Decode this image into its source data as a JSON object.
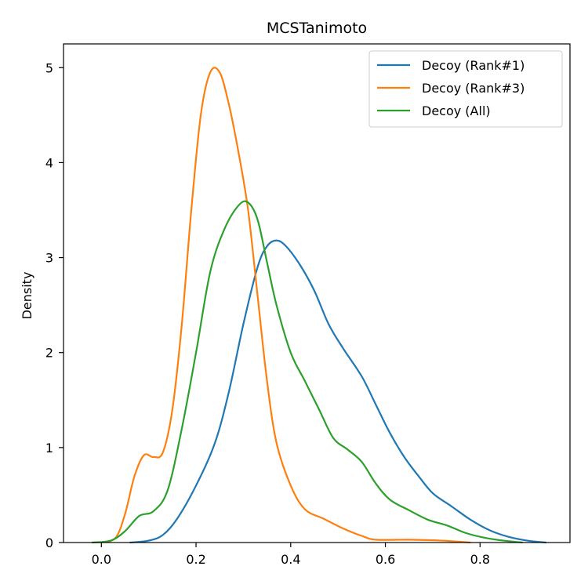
{
  "chart_data": {
    "type": "line",
    "title": "MCSTanimoto",
    "xlabel": "",
    "ylabel": "Density",
    "xlim": [
      -0.08,
      0.99
    ],
    "ylim": [
      0,
      5.25
    ],
    "xticks": [
      0.0,
      0.2,
      0.4,
      0.6,
      0.8
    ],
    "xtick_labels": [
      "0.0",
      "0.2",
      "0.4",
      "0.6",
      "0.8"
    ],
    "yticks": [
      0,
      1,
      2,
      3,
      4,
      5
    ],
    "ytick_labels": [
      "0",
      "1",
      "2",
      "3",
      "4",
      "5"
    ],
    "grid": false,
    "legend_position": "top-right",
    "series": [
      {
        "name": "Decoy (Rank#1)",
        "color": "#1f77b4",
        "points": [
          [
            0.06,
            0.0
          ],
          [
            0.1,
            0.02
          ],
          [
            0.13,
            0.08
          ],
          [
            0.16,
            0.25
          ],
          [
            0.2,
            0.6
          ],
          [
            0.24,
            1.05
          ],
          [
            0.27,
            1.6
          ],
          [
            0.3,
            2.3
          ],
          [
            0.33,
            2.9
          ],
          [
            0.35,
            3.12
          ],
          [
            0.37,
            3.18
          ],
          [
            0.39,
            3.12
          ],
          [
            0.42,
            2.92
          ],
          [
            0.45,
            2.65
          ],
          [
            0.48,
            2.3
          ],
          [
            0.51,
            2.05
          ],
          [
            0.55,
            1.75
          ],
          [
            0.58,
            1.45
          ],
          [
            0.61,
            1.15
          ],
          [
            0.64,
            0.9
          ],
          [
            0.67,
            0.7
          ],
          [
            0.7,
            0.52
          ],
          [
            0.74,
            0.38
          ],
          [
            0.78,
            0.24
          ],
          [
            0.82,
            0.13
          ],
          [
            0.86,
            0.06
          ],
          [
            0.9,
            0.02
          ],
          [
            0.94,
            0.0
          ]
        ]
      },
      {
        "name": "Decoy (Rank#3)",
        "color": "#ff7f0e",
        "points": [
          [
            0.0,
            0.0
          ],
          [
            0.03,
            0.05
          ],
          [
            0.05,
            0.3
          ],
          [
            0.07,
            0.7
          ],
          [
            0.09,
            0.92
          ],
          [
            0.11,
            0.9
          ],
          [
            0.13,
            0.95
          ],
          [
            0.15,
            1.4
          ],
          [
            0.17,
            2.3
          ],
          [
            0.19,
            3.5
          ],
          [
            0.21,
            4.5
          ],
          [
            0.23,
            4.95
          ],
          [
            0.25,
            4.95
          ],
          [
            0.27,
            4.6
          ],
          [
            0.29,
            4.1
          ],
          [
            0.31,
            3.5
          ],
          [
            0.33,
            2.6
          ],
          [
            0.35,
            1.7
          ],
          [
            0.37,
            1.05
          ],
          [
            0.4,
            0.6
          ],
          [
            0.43,
            0.35
          ],
          [
            0.47,
            0.25
          ],
          [
            0.51,
            0.15
          ],
          [
            0.55,
            0.07
          ],
          [
            0.58,
            0.03
          ],
          [
            0.65,
            0.03
          ],
          [
            0.72,
            0.02
          ],
          [
            0.78,
            0.0
          ]
        ]
      },
      {
        "name": "Decoy (All)",
        "color": "#2ca02c",
        "points": [
          [
            -0.02,
            0.0
          ],
          [
            0.02,
            0.02
          ],
          [
            0.05,
            0.12
          ],
          [
            0.08,
            0.28
          ],
          [
            0.11,
            0.33
          ],
          [
            0.14,
            0.55
          ],
          [
            0.17,
            1.2
          ],
          [
            0.2,
            2.0
          ],
          [
            0.23,
            2.85
          ],
          [
            0.26,
            3.3
          ],
          [
            0.29,
            3.55
          ],
          [
            0.31,
            3.58
          ],
          [
            0.33,
            3.4
          ],
          [
            0.35,
            2.95
          ],
          [
            0.37,
            2.5
          ],
          [
            0.4,
            2.0
          ],
          [
            0.43,
            1.7
          ],
          [
            0.46,
            1.4
          ],
          [
            0.49,
            1.1
          ],
          [
            0.52,
            0.98
          ],
          [
            0.55,
            0.85
          ],
          [
            0.58,
            0.62
          ],
          [
            0.61,
            0.45
          ],
          [
            0.65,
            0.34
          ],
          [
            0.69,
            0.24
          ],
          [
            0.73,
            0.18
          ],
          [
            0.77,
            0.1
          ],
          [
            0.81,
            0.05
          ],
          [
            0.85,
            0.02
          ],
          [
            0.89,
            0.0
          ]
        ]
      }
    ]
  }
}
